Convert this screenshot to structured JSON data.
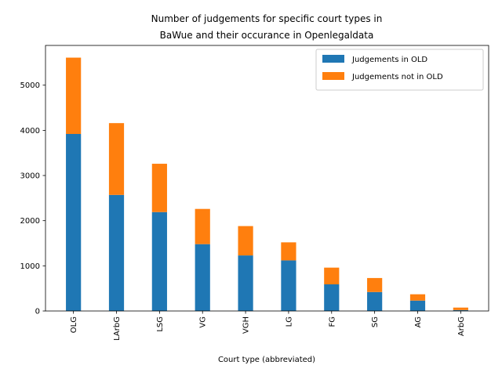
{
  "chart_data": {
    "type": "bar",
    "stacked": true,
    "title_lines": [
      "Number of judgements for specific court types in",
      "BaWue and their occurance in Openlegaldata"
    ],
    "xlabel": "Court type (abbreviated)",
    "ylabel": "",
    "categories": [
      "OLG",
      "LArbG",
      "LSG",
      "VG",
      "VGH",
      "LG",
      "FG",
      "SG",
      "AG",
      "ArbG"
    ],
    "series": [
      {
        "name": "Judgements in OLD",
        "color": "#1f77b4",
        "values": [
          3920,
          2570,
          2190,
          1480,
          1230,
          1120,
          590,
          420,
          230,
          20
        ]
      },
      {
        "name": "Judgements not in OLD",
        "color": "#ff7f0e",
        "values": [
          1690,
          1590,
          1070,
          780,
          650,
          400,
          370,
          310,
          140,
          55
        ]
      }
    ],
    "ylim": [
      0,
      5880
    ],
    "yticks": [
      0,
      1000,
      2000,
      3000,
      4000,
      5000
    ],
    "legend": "top-right",
    "grid": false
  }
}
